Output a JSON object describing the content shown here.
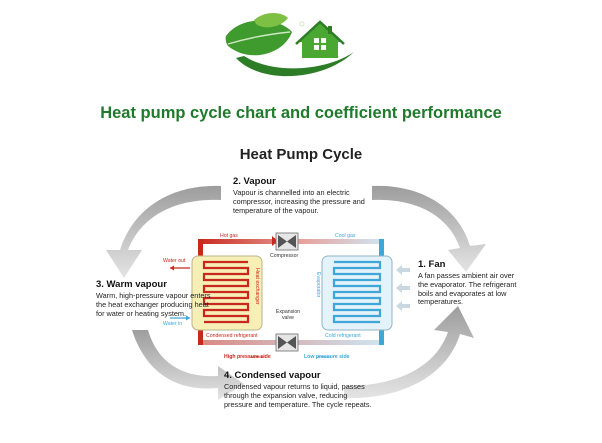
{
  "headline": "Heat pump cycle chart and coefficient performance",
  "cycle_title": "Heat Pump Cycle",
  "steps": {
    "vapour": {
      "heading": "2. Vapour",
      "text": "Vapour is channelled into an electric compressor, increasing the pressure and temperature of the vapour."
    },
    "fan": {
      "heading": "1. Fan",
      "text": "A fan passes ambient air over the evaporator. The refrigerant boils and evaporates at low temperatures."
    },
    "warm_vapour": {
      "heading": "3. Warm vapour",
      "text": "Warm, high-pressure vapour enters the heat exchanger producing heat for water or heating system."
    },
    "condensed_vapour": {
      "heading": "4. Condensed vapour",
      "text": "Condensed vapour returns to liquid, passes through the expansion valve, reducing pressure and temperature. The cycle repeats."
    }
  },
  "diagram_labels": {
    "hot_gas": "Hot gas",
    "cool_gas": "Cool gas",
    "compressor": "Compressor",
    "water_out": "Water out",
    "water_in": "Water in",
    "heat_exchanger": "Heat exchanger",
    "evaporator": "Evaporator",
    "expansion_valve": "Expansion valve",
    "condensed_refrigerant": "Condensed refrigerant",
    "cold_refrigerant": "Cold refrigerant",
    "high_pressure_side": "High pressure side",
    "low_pressure_side": "Low pressure side"
  },
  "colors": {
    "headline": "#1f7a2c",
    "hot": "#c8281e",
    "cold": "#3ea7d8",
    "arrow": "#bdbdbd",
    "logo_green": "#3f9b2d"
  }
}
